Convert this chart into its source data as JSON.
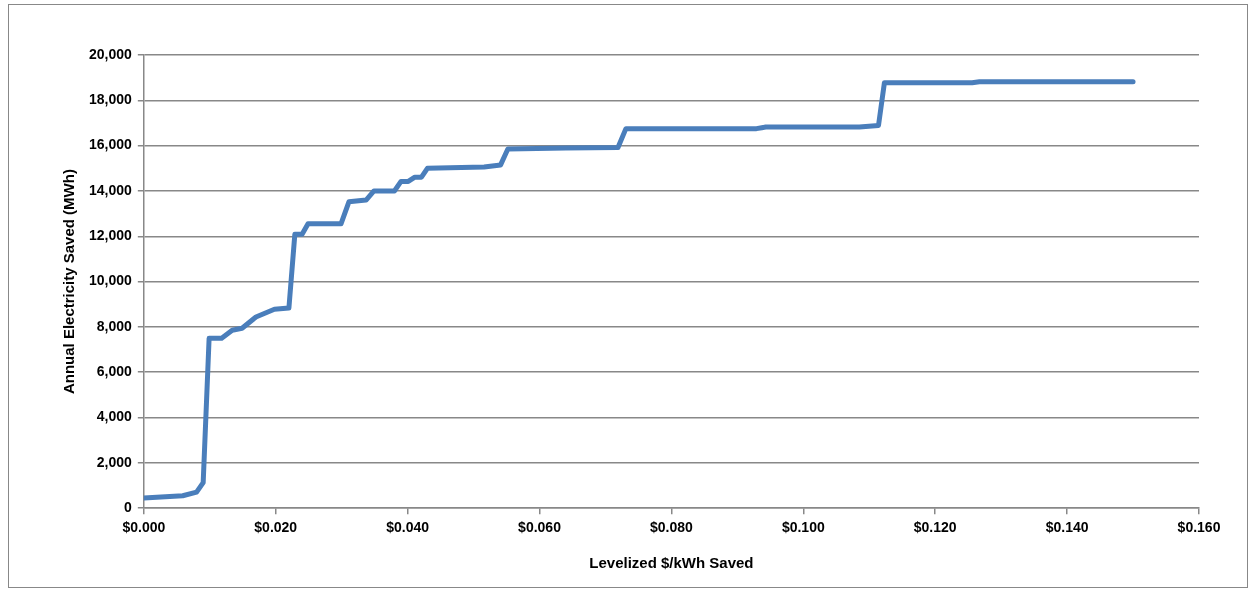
{
  "chart_data": {
    "type": "line",
    "xlabel": "Levelized $/kWh Saved",
    "ylabel": "Annual Electricity Saved (MWh)",
    "xlim": [
      0,
      0.16
    ],
    "ylim": [
      0,
      20000
    ],
    "xticks": [
      {
        "value": 0,
        "label": "$0.000"
      },
      {
        "value": 0.02,
        "label": "$0.020"
      },
      {
        "value": 0.04,
        "label": "$0.040"
      },
      {
        "value": 0.06,
        "label": "$0.060"
      },
      {
        "value": 0.08,
        "label": "$0.080"
      },
      {
        "value": 0.1,
        "label": "$0.100"
      },
      {
        "value": 0.12,
        "label": "$0.120"
      },
      {
        "value": 0.14,
        "label": "$0.140"
      },
      {
        "value": 0.16,
        "label": "$0.160"
      }
    ],
    "yticks": [
      {
        "value": 0,
        "label": "0"
      },
      {
        "value": 2000,
        "label": "2,000"
      },
      {
        "value": 4000,
        "label": "4,000"
      },
      {
        "value": 6000,
        "label": "6,000"
      },
      {
        "value": 8000,
        "label": "8,000"
      },
      {
        "value": 10000,
        "label": "10,000"
      },
      {
        "value": 12000,
        "label": "12,000"
      },
      {
        "value": 14000,
        "label": "14,000"
      },
      {
        "value": 16000,
        "label": "16,000"
      },
      {
        "value": 18000,
        "label": "18,000"
      },
      {
        "value": 20000,
        "label": "20,000"
      }
    ],
    "grid": "y",
    "legend": false,
    "marker": "none",
    "line_style": "solid",
    "x": [
      0,
      0.0059,
      0.008,
      0.009,
      0.0099,
      0.0118,
      0.0134,
      0.0149,
      0.017,
      0.0198,
      0.022,
      0.0229,
      0.024,
      0.0249,
      0.0299,
      0.0311,
      0.0337,
      0.0349,
      0.038,
      0.039,
      0.0401,
      0.0411,
      0.0421,
      0.043,
      0.0516,
      0.0541,
      0.0552,
      0.064,
      0.0719,
      0.0731,
      0.0929,
      0.0943,
      0.1085,
      0.1114,
      0.1123,
      0.1256,
      0.1267,
      0.15
    ],
    "series": [
      {
        "color": "#4a7ebb",
        "values": [
          450,
          550,
          710,
          1130,
          7500,
          7500,
          7850,
          7940,
          8440,
          8780,
          8830,
          12090,
          12090,
          12550,
          12550,
          13520,
          13600,
          14000,
          14000,
          14420,
          14420,
          14610,
          14610,
          15000,
          15060,
          15150,
          15850,
          15900,
          15920,
          16750,
          16750,
          16820,
          16820,
          16890,
          18780,
          18780,
          18820,
          18820
        ]
      }
    ]
  }
}
